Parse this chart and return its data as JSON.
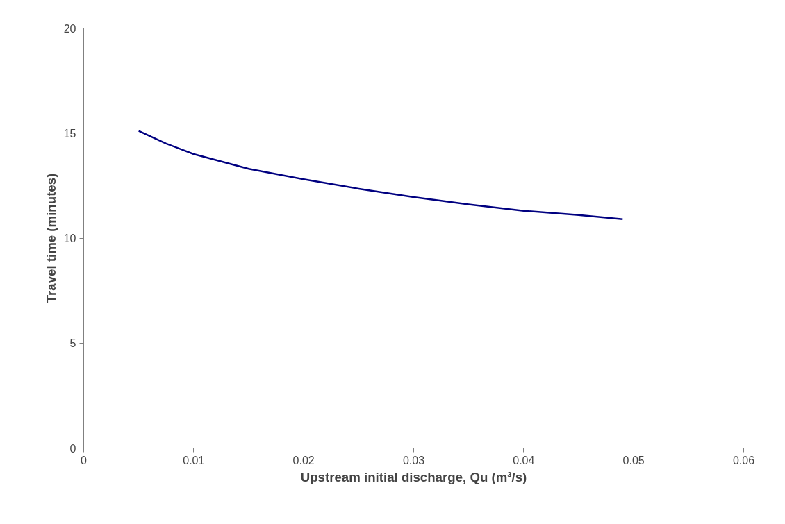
{
  "chart_data": {
    "type": "line",
    "xlabel": "Upstream initial discharge, Qu (m³/s)",
    "ylabel": "Travel time (minutes)",
    "xlim": [
      0,
      0.06
    ],
    "ylim": [
      0,
      20
    ],
    "xticks": [
      0,
      0.01,
      0.02,
      0.03,
      0.04,
      0.05,
      0.06
    ],
    "yticks": [
      0,
      5,
      10,
      15,
      20
    ],
    "grid": false,
    "line_style": "solid",
    "series": [
      {
        "color": "#000080",
        "x": [
          0.005,
          0.0075,
          0.01,
          0.015,
          0.02,
          0.025,
          0.03,
          0.035,
          0.04,
          0.045,
          0.049
        ],
        "values": [
          15.1,
          14.5,
          14.0,
          13.3,
          12.8,
          12.35,
          11.95,
          11.6,
          11.3,
          11.1,
          10.9
        ]
      }
    ]
  }
}
